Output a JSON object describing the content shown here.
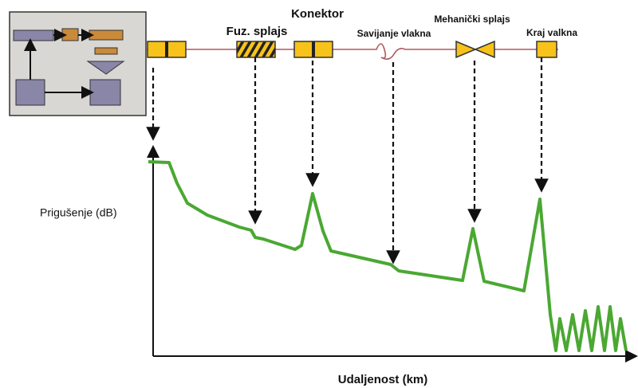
{
  "events": [
    {
      "label": "Fuz. splajs"
    },
    {
      "label": "Konektor"
    },
    {
      "label": "Savijanje vlakna"
    },
    {
      "label": "Mehanički splajs"
    },
    {
      "label": "Kraj valkna"
    }
  ],
  "y_axis_label": "Prigušenje (dB)",
  "x_axis_label": "Udaljenost (km)"
}
